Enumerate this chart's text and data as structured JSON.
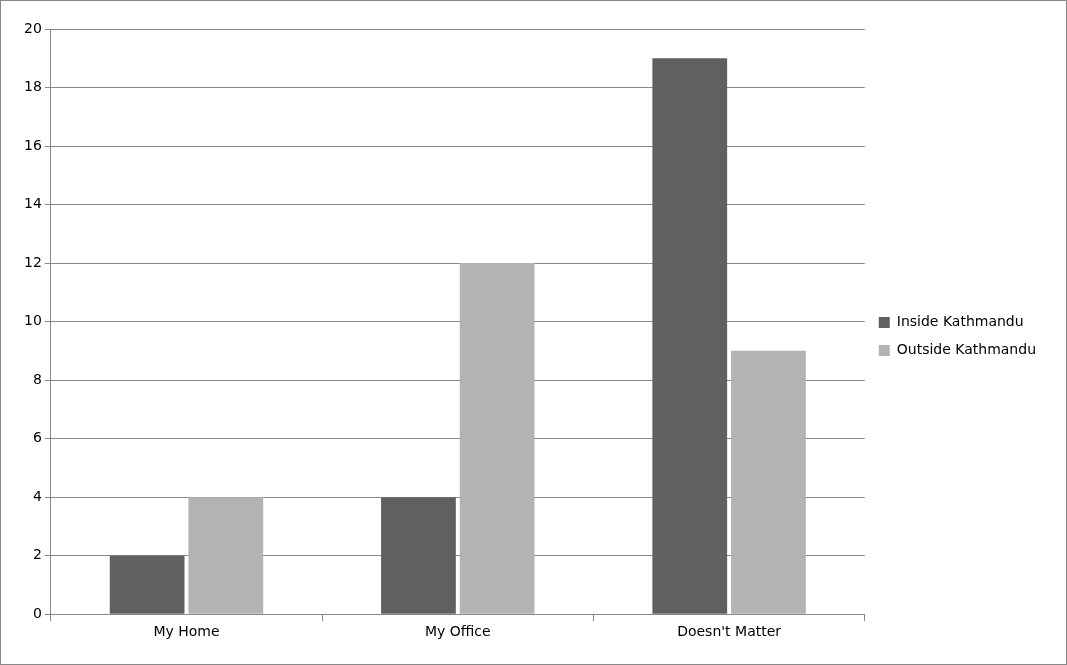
{
  "chart_data": {
    "type": "bar",
    "categories": [
      "My Home",
      "My Office",
      "Doesn't Matter"
    ],
    "series": [
      {
        "name": "Inside Kathmandu",
        "color": "#606060",
        "values": [
          2,
          4,
          19
        ]
      },
      {
        "name": "Outside Kathmandu",
        "color": "#b3b3b3",
        "values": [
          4,
          12,
          9
        ]
      }
    ],
    "ylim": [
      0,
      20
    ],
    "yticks": [
      0,
      2,
      4,
      6,
      8,
      10,
      12,
      14,
      16,
      18,
      20
    ],
    "grid": "y",
    "legend": "right"
  }
}
